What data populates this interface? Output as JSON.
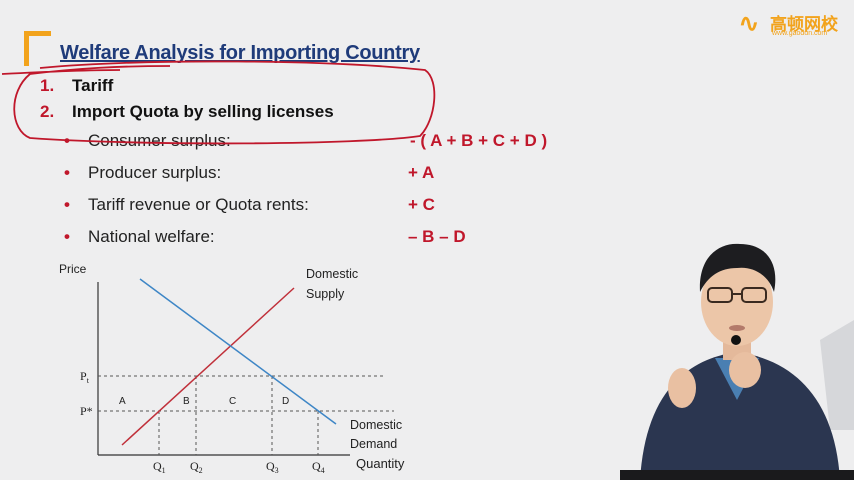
{
  "slide": {
    "title": "Welfare Analysis for Importing Country",
    "logo": {
      "name": "高顿网校",
      "url": "www.gaodun.com"
    },
    "numbered_items": [
      {
        "num": "1.",
        "text": "Tariff"
      },
      {
        "num": "2.",
        "text": "Import Quota by selling licenses"
      }
    ],
    "effects": [
      {
        "label": "Consumer surplus:",
        "value": "- ( A + B + C + D )"
      },
      {
        "label": "Producer surplus:",
        "value": "+ A"
      },
      {
        "label": "Tariff revenue or Quota rents:",
        "value": "+ C"
      },
      {
        "label": "National welfare:",
        "value": "– B – D"
      }
    ]
  },
  "diagram": {
    "y_axis_label": "Price",
    "x_axis_label": "Quantity",
    "supply_label_1": "Domestic",
    "supply_label_2": "Supply",
    "demand_label_1": "Domestic",
    "demand_label_2": "Demand",
    "price_labels": {
      "pt": "P",
      "pt_sub": "t",
      "pstar": "P*"
    },
    "quantity_labels": [
      {
        "main": "Q",
        "sub": "1"
      },
      {
        "main": "Q",
        "sub": "2"
      },
      {
        "main": "Q",
        "sub": "3"
      },
      {
        "main": "Q",
        "sub": "4"
      }
    ],
    "area_labels": [
      "A",
      "B",
      "C",
      "D"
    ],
    "colors": {
      "supply": "#c0303a",
      "demand": "#3e86c6",
      "axis": "#333333"
    }
  },
  "annotation": {
    "color": "#c0172b"
  }
}
